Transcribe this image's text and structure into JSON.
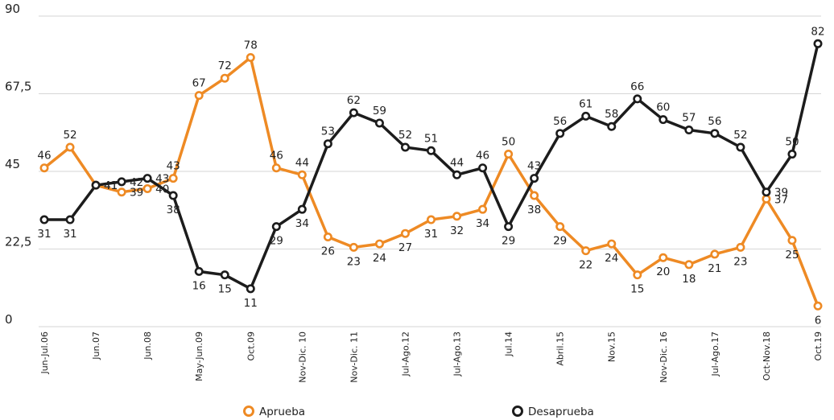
{
  "chart_data": {
    "type": "line",
    "title": "",
    "xlabel": "",
    "ylabel": "",
    "ylim": [
      0,
      90
    ],
    "yticks": [
      "0",
      "22,5",
      "45",
      "67,5",
      "90"
    ],
    "ytick_values": [
      0,
      22.5,
      45,
      67.5,
      90
    ],
    "xtick_labels": [
      {
        "index": 0,
        "label": "Jun-Jul.06"
      },
      {
        "index": 2,
        "label": "Jun.07"
      },
      {
        "index": 4,
        "label": "Jun.08"
      },
      {
        "index": 6,
        "label": "May-Jun.09"
      },
      {
        "index": 8,
        "label": "Oct.09"
      },
      {
        "index": 10,
        "label": "Nov-Dic. 10"
      },
      {
        "index": 12,
        "label": "Nov-Dic. 11"
      },
      {
        "index": 14,
        "label": "Jul-Ago.12"
      },
      {
        "index": 16,
        "label": "Jul-Ago.13"
      },
      {
        "index": 18,
        "label": "Jul.14"
      },
      {
        "index": 20,
        "label": "Abril.15"
      },
      {
        "index": 22,
        "label": "Nov.15"
      },
      {
        "index": 24,
        "label": "Nov-Dic. 16"
      },
      {
        "index": 26,
        "label": "Jul-Ago.17"
      },
      {
        "index": 28,
        "label": "Oct-Nov.18"
      },
      {
        "index": 30,
        "label": "Oct.19"
      }
    ],
    "series": [
      {
        "name": "Aprueba",
        "color": "#EE8A24",
        "values": [
          46,
          52,
          41,
          39,
          40,
          43,
          67,
          72,
          78,
          46,
          44,
          26,
          23,
          24,
          27,
          31,
          32,
          34,
          50,
          38,
          29,
          22,
          24,
          15,
          20,
          18,
          21,
          23,
          37,
          25,
          6
        ]
      },
      {
        "name": "Desaprueba",
        "color": "#1c1c1c",
        "values": [
          31,
          31,
          41,
          42,
          43,
          38,
          16,
          15,
          11,
          29,
          34,
          53,
          62,
          59,
          52,
          51,
          44,
          46,
          29,
          43,
          56,
          61,
          58,
          66,
          60,
          57,
          56,
          52,
          39,
          50,
          82
        ]
      }
    ],
    "legend": {
      "position": "bottom",
      "items": [
        "Aprueba",
        "Desaprueba"
      ]
    }
  }
}
